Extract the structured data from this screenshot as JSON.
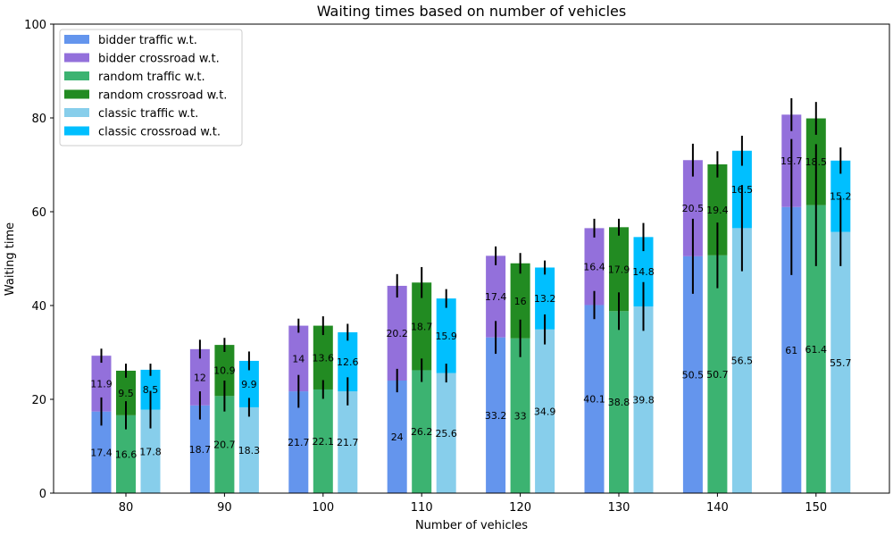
{
  "chart_data": {
    "type": "bar",
    "title": "Waiting times based on number of vehicles",
    "xlabel": "Number of vehicles",
    "ylabel": "Waiting time",
    "categories": [
      "80",
      "90",
      "100",
      "110",
      "120",
      "130",
      "140",
      "150"
    ],
    "ylim": [
      0,
      100
    ],
    "yticks": [
      0,
      20,
      40,
      60,
      80,
      100
    ],
    "grid": false,
    "legend_position": "top-left",
    "groups": [
      {
        "name": "bidder",
        "traffic": {
          "name": "bidder traffic w.t.",
          "color": "#6495ED",
          "values": [
            17.4,
            18.7,
            21.7,
            24,
            33.2,
            40.1,
            50.5,
            61
          ],
          "labels": [
            "17.4",
            "18.7",
            "21.7",
            "24",
            "33.2",
            "40.1",
            "50.5",
            "61"
          ],
          "errors": [
            3.0,
            3.0,
            3.5,
            2.5,
            3.5,
            3.0,
            8.0,
            14.5
          ]
        },
        "crossroad": {
          "name": "bidder crossroad w.t.",
          "color": "#9370DB",
          "values": [
            11.9,
            12,
            14,
            20.2,
            17.4,
            16.4,
            20.5,
            19.7
          ],
          "labels": [
            "11.9",
            "12",
            "14",
            "20.2",
            "17.4",
            "16.4",
            "20.5",
            "19.7"
          ],
          "errors": [
            1.5,
            2.0,
            1.5,
            2.5,
            2.0,
            2.0,
            3.5,
            3.5
          ]
        }
      },
      {
        "name": "random",
        "traffic": {
          "name": "random traffic w.t.",
          "color": "#3CB371",
          "values": [
            16.6,
            20.7,
            22.1,
            26.2,
            33,
            38.8,
            50.7,
            61.4
          ],
          "labels": [
            "16.6",
            "20.7",
            "22.1",
            "26.2",
            "33",
            "38.8",
            "50.7",
            "61.4"
          ],
          "errors": [
            3.0,
            3.3,
            2.0,
            2.5,
            4.0,
            4.0,
            7.0,
            13.0
          ]
        },
        "crossroad": {
          "name": "random crossroad w.t.",
          "color": "#228B22",
          "values": [
            9.5,
            10.9,
            13.6,
            18.7,
            16,
            17.9,
            19.4,
            18.5
          ],
          "labels": [
            "9.5",
            "10.9",
            "13.6",
            "18.7",
            "16",
            "17.9",
            "19.4",
            "18.5"
          ],
          "errors": [
            1.5,
            1.5,
            2.0,
            3.3,
            2.2,
            1.8,
            2.8,
            3.5
          ]
        }
      },
      {
        "name": "classic",
        "traffic": {
          "name": "classic traffic w.t.",
          "color": "#87CEEB",
          "values": [
            17.8,
            18.3,
            21.7,
            25.6,
            34.9,
            39.8,
            56.5,
            55.7
          ],
          "labels": [
            "17.8",
            "18.3",
            "21.7",
            "25.6",
            "34.9",
            "39.8",
            "56.5",
            "55.7"
          ],
          "errors": [
            4.0,
            2.0,
            3.0,
            2.0,
            3.2,
            5.2,
            9.2,
            7.3
          ]
        },
        "crossroad": {
          "name": "classic crossroad w.t.",
          "color": "#00BFFF",
          "values": [
            8.5,
            9.9,
            12.6,
            15.9,
            13.2,
            14.8,
            16.5,
            15.2
          ],
          "labels": [
            "8.5",
            "9.9",
            "12.6",
            "15.9",
            "13.2",
            "14.8",
            "16.5",
            "15.2"
          ],
          "errors": [
            1.3,
            2.0,
            1.8,
            2.0,
            1.5,
            3.0,
            3.2,
            2.8
          ]
        }
      }
    ]
  }
}
